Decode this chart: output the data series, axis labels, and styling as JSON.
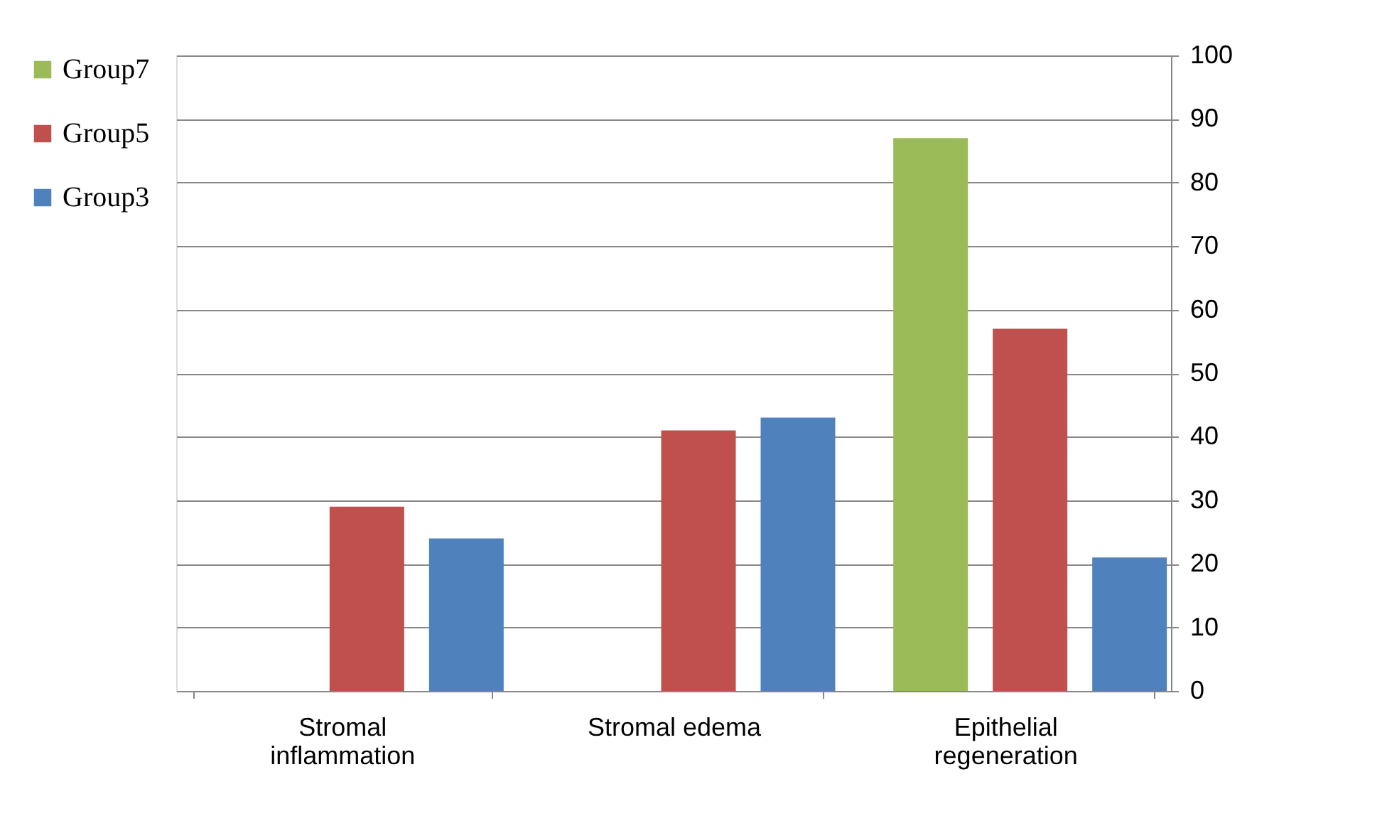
{
  "chart_data": {
    "type": "bar",
    "categories": [
      "Stromal inflammation",
      "Stromal edema",
      "Epithelial regeneration"
    ],
    "series": [
      {
        "name": "Group7",
        "color": "#9bbb59",
        "values": [
          null,
          null,
          87
        ]
      },
      {
        "name": "Group5",
        "color": "#c0504d",
        "values": [
          29,
          41,
          57
        ]
      },
      {
        "name": "Group3",
        "color": "#4f81bd",
        "values": [
          24,
          43,
          21
        ]
      }
    ],
    "ylim": [
      0,
      100
    ],
    "yticks": [
      0,
      10,
      20,
      30,
      40,
      50,
      60,
      70,
      80,
      90,
      100
    ],
    "grid": "y",
    "legend": "left"
  }
}
